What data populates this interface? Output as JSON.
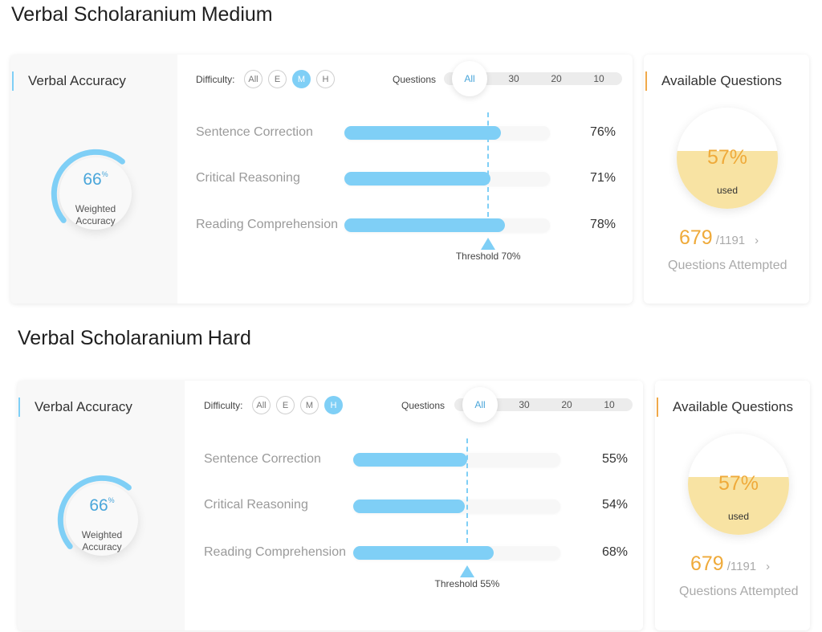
{
  "panels": [
    {
      "title": "Verbal Scholaranium",
      "difficulty_title": "Medium",
      "accuracy": {
        "title": "Verbal Accuracy",
        "value": "66",
        "unit": "%",
        "label_line1": "Weighted",
        "label_line2": "Accuracy",
        "arc_fraction": 0.66
      },
      "filters": {
        "difficulty_label": "Difficulty:",
        "difficulty_options": [
          "All",
          "E",
          "M",
          "H"
        ],
        "difficulty_selected": "M",
        "questions_label": "Questions",
        "question_options": [
          "All",
          "30",
          "20",
          "10"
        ],
        "question_selected": "All"
      },
      "bars": [
        {
          "label": "Sentence Correction",
          "value": 76,
          "pct_text": "76%"
        },
        {
          "label": "Critical Reasoning",
          "value": 71,
          "pct_text": "71%"
        },
        {
          "label": "Reading Comprehension",
          "value": 78,
          "pct_text": "78%"
        }
      ],
      "threshold": {
        "value": 70,
        "text": "Threshold 70%"
      },
      "available": {
        "title": "Available Questions",
        "used_pct": "57%",
        "used_fraction": 0.57,
        "used_label": "used",
        "attempted": "679",
        "total": "/1191",
        "chevron": "›",
        "attempted_label": "Questions Attempted"
      }
    },
    {
      "title": "Verbal Scholaranium",
      "difficulty_title": "Hard",
      "accuracy": {
        "title": "Verbal Accuracy",
        "value": "66",
        "unit": "%",
        "label_line1": "Weighted",
        "label_line2": "Accuracy",
        "arc_fraction": 0.66
      },
      "filters": {
        "difficulty_label": "Difficulty:",
        "difficulty_options": [
          "All",
          "E",
          "M",
          "H"
        ],
        "difficulty_selected": "H",
        "questions_label": "Questions",
        "question_options": [
          "All",
          "30",
          "20",
          "10"
        ],
        "question_selected": "All"
      },
      "bars": [
        {
          "label": "Sentence Correction",
          "value": 55,
          "pct_text": "55%"
        },
        {
          "label": "Critical Reasoning",
          "value": 54,
          "pct_text": "54%"
        },
        {
          "label": "Reading Comprehension",
          "value": 68,
          "pct_text": "68%"
        }
      ],
      "threshold": {
        "value": 55,
        "text": "Threshold 55%"
      },
      "available": {
        "title": "Available Questions",
        "used_pct": "57%",
        "used_fraction": 0.57,
        "used_label": "used",
        "attempted": "679",
        "total": "/1191",
        "chevron": "›",
        "attempted_label": "Questions Attempted"
      }
    }
  ],
  "colors": {
    "accent_blue": "#7fcff6",
    "value_blue": "#4aa6da",
    "accent_orange": "#efaa3a",
    "used_fill": "#f8e3a3"
  }
}
